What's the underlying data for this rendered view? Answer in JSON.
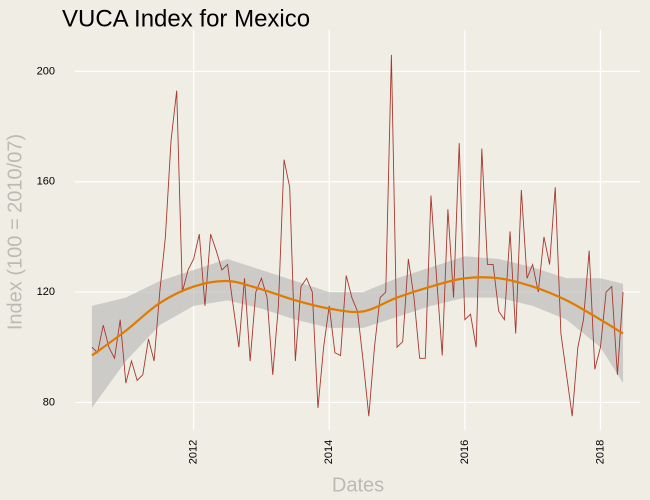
{
  "chart_data": {
    "type": "line",
    "title": "VUCA Index for Mexico",
    "x_label": "Dates",
    "y_label": "Index (100 = 2010/07)",
    "x": [
      "2010-07",
      "2010-08",
      "2010-09",
      "2010-10",
      "2010-11",
      "2010-12",
      "2011-01",
      "2011-02",
      "2011-03",
      "2011-04",
      "2011-05",
      "2011-06",
      "2011-07",
      "2011-08",
      "2011-09",
      "2011-10",
      "2011-11",
      "2011-12",
      "2012-01",
      "2012-02",
      "2012-03",
      "2012-04",
      "2012-05",
      "2012-06",
      "2012-07",
      "2012-08",
      "2012-09",
      "2012-10",
      "2012-11",
      "2012-12",
      "2013-01",
      "2013-02",
      "2013-03",
      "2013-04",
      "2013-05",
      "2013-06",
      "2013-07",
      "2013-08",
      "2013-09",
      "2013-10",
      "2013-11",
      "2013-12",
      "2014-01",
      "2014-02",
      "2014-03",
      "2014-04",
      "2014-05",
      "2014-06",
      "2014-07",
      "2014-08",
      "2014-09",
      "2014-10",
      "2014-11",
      "2014-12",
      "2015-01",
      "2015-02",
      "2015-03",
      "2015-04",
      "2015-05",
      "2015-06",
      "2015-07",
      "2015-08",
      "2015-09",
      "2015-10",
      "2015-11",
      "2015-12",
      "2016-01",
      "2016-02",
      "2016-03",
      "2016-04",
      "2016-05",
      "2016-06",
      "2016-07",
      "2016-08",
      "2016-09",
      "2016-10",
      "2016-11",
      "2016-12",
      "2017-01",
      "2017-02",
      "2017-03",
      "2017-04",
      "2017-05",
      "2017-06",
      "2017-07",
      "2017-08",
      "2017-09",
      "2017-10",
      "2017-11",
      "2017-12",
      "2018-01",
      "2018-02",
      "2018-03",
      "2018-04",
      "2018-05"
    ],
    "values": [
      100,
      98,
      108,
      100,
      96,
      110,
      87,
      95,
      88,
      90,
      103,
      95,
      120,
      140,
      175,
      193,
      120,
      128,
      132,
      141,
      115,
      141,
      135,
      128,
      130,
      115,
      100,
      125,
      95,
      120,
      125,
      118,
      90,
      115,
      168,
      158,
      95,
      122,
      125,
      120,
      78,
      100,
      115,
      98,
      97,
      126,
      118,
      113,
      95,
      75,
      100,
      118,
      120,
      206,
      100,
      102,
      132,
      118,
      96,
      96,
      155,
      125,
      97,
      150,
      118,
      174,
      110,
      112,
      100,
      172,
      130,
      130,
      113,
      110,
      142,
      105,
      157,
      125,
      130,
      120,
      140,
      130,
      158,
      105,
      90,
      75,
      100,
      110,
      135,
      92,
      100,
      120,
      122,
      90,
      120
    ],
    "color": "#a5392f",
    "smooth": {
      "x": [
        "2010-07",
        "2011-01",
        "2011-07",
        "2012-01",
        "2012-07",
        "2013-01",
        "2013-07",
        "2014-01",
        "2014-07",
        "2015-01",
        "2015-07",
        "2016-01",
        "2016-07",
        "2017-01",
        "2017-07",
        "2018-01",
        "2018-05"
      ],
      "values": [
        97,
        106,
        116,
        122,
        124,
        121,
        117,
        114,
        113,
        118,
        122,
        125,
        125,
        122,
        117,
        110,
        105
      ],
      "lower": [
        78,
        95,
        108,
        115,
        117,
        114,
        110,
        107,
        107,
        111,
        115,
        118,
        118,
        115,
        110,
        100,
        87
      ],
      "upper": [
        115,
        118,
        124,
        128,
        132,
        128,
        124,
        120,
        120,
        125,
        129,
        133,
        132,
        129,
        125,
        125,
        123
      ],
      "color": "#e07b00",
      "band_color": "#b4b4b4"
    },
    "xlim": [
      "2010-04",
      "2018-08"
    ],
    "xticks": [
      {
        "value": "2012-01",
        "label": "2012"
      },
      {
        "value": "2014-01",
        "label": "2014"
      },
      {
        "value": "2016-01",
        "label": "2016"
      },
      {
        "value": "2018-01",
        "label": "2018"
      }
    ],
    "ylim": [
      70,
      215
    ],
    "yticks": [
      80,
      120,
      160,
      200
    ],
    "grid": true
  }
}
